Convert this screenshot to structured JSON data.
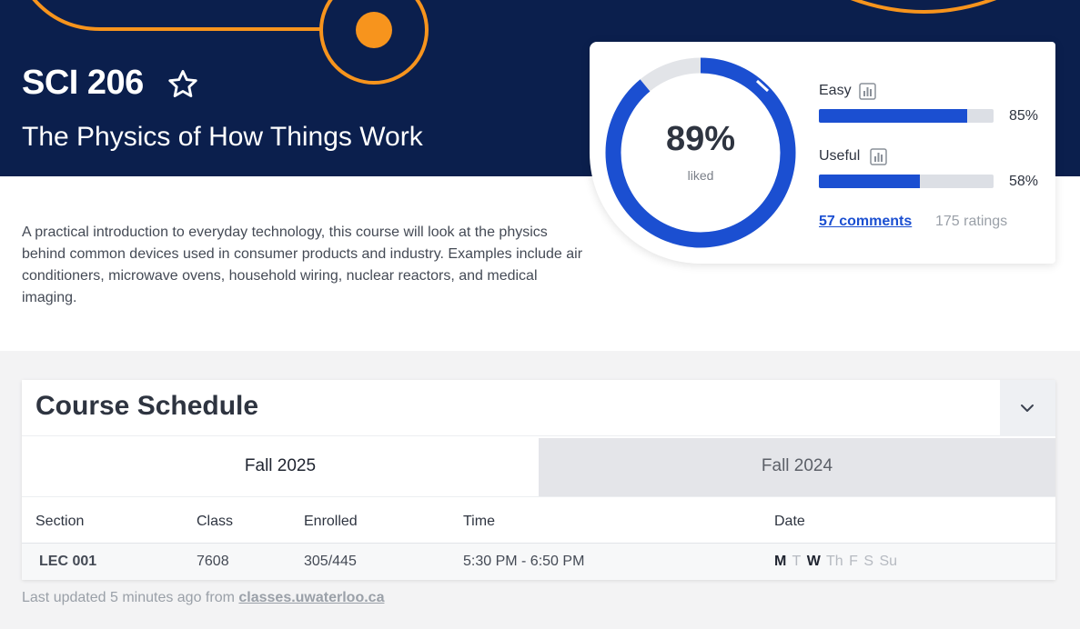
{
  "course": {
    "code": "SCI 206",
    "name": "The Physics of How Things Work",
    "description": "A practical introduction to everyday technology, this course will look at the physics behind common devices used in consumer products and industry. Examples include air conditioners, microwave ovens, household wiring, nuclear reactors, and medical imaging.",
    "favorite_icon": "star-outline-icon"
  },
  "ratings": {
    "liked_percent": "89%",
    "liked_value": 0.89,
    "liked_label": "liked",
    "easy": {
      "label": "Easy",
      "percent": "85%",
      "value": 0.85,
      "icon": "bar-chart-icon"
    },
    "useful": {
      "label": "Useful",
      "percent": "58%",
      "value": 0.58,
      "icon": "bar-chart-icon"
    },
    "comments": "57 comments",
    "ratings_count": "175 ratings"
  },
  "schedule": {
    "title": "Course Schedule",
    "toggle_icon": "chevron-down-icon",
    "tabs": [
      {
        "label": "Fall 2025",
        "active": true
      },
      {
        "label": "Fall 2024",
        "active": false
      }
    ],
    "columns": [
      "Section",
      "Class",
      "Enrolled",
      "Time",
      "Date"
    ],
    "rows": [
      {
        "section": "LEC 001",
        "class": "7608",
        "enrolled": "305/445",
        "time": "5:30 PM - 6:50 PM",
        "days": [
          {
            "label": "M",
            "on": true
          },
          {
            "label": "T",
            "on": false
          },
          {
            "label": "W",
            "on": true
          },
          {
            "label": "Th",
            "on": false
          },
          {
            "label": "F",
            "on": false
          },
          {
            "label": "S",
            "on": false
          },
          {
            "label": "Su",
            "on": false
          }
        ]
      }
    ]
  },
  "footer": {
    "prefix": "Last updated 5 minutes ago from",
    "link": "classes.uwaterloo.ca"
  },
  "colors": {
    "hero_bg": "#0b1f4d",
    "accent_orange": "#f7941d",
    "accent_blue": "#1b4fd1"
  }
}
